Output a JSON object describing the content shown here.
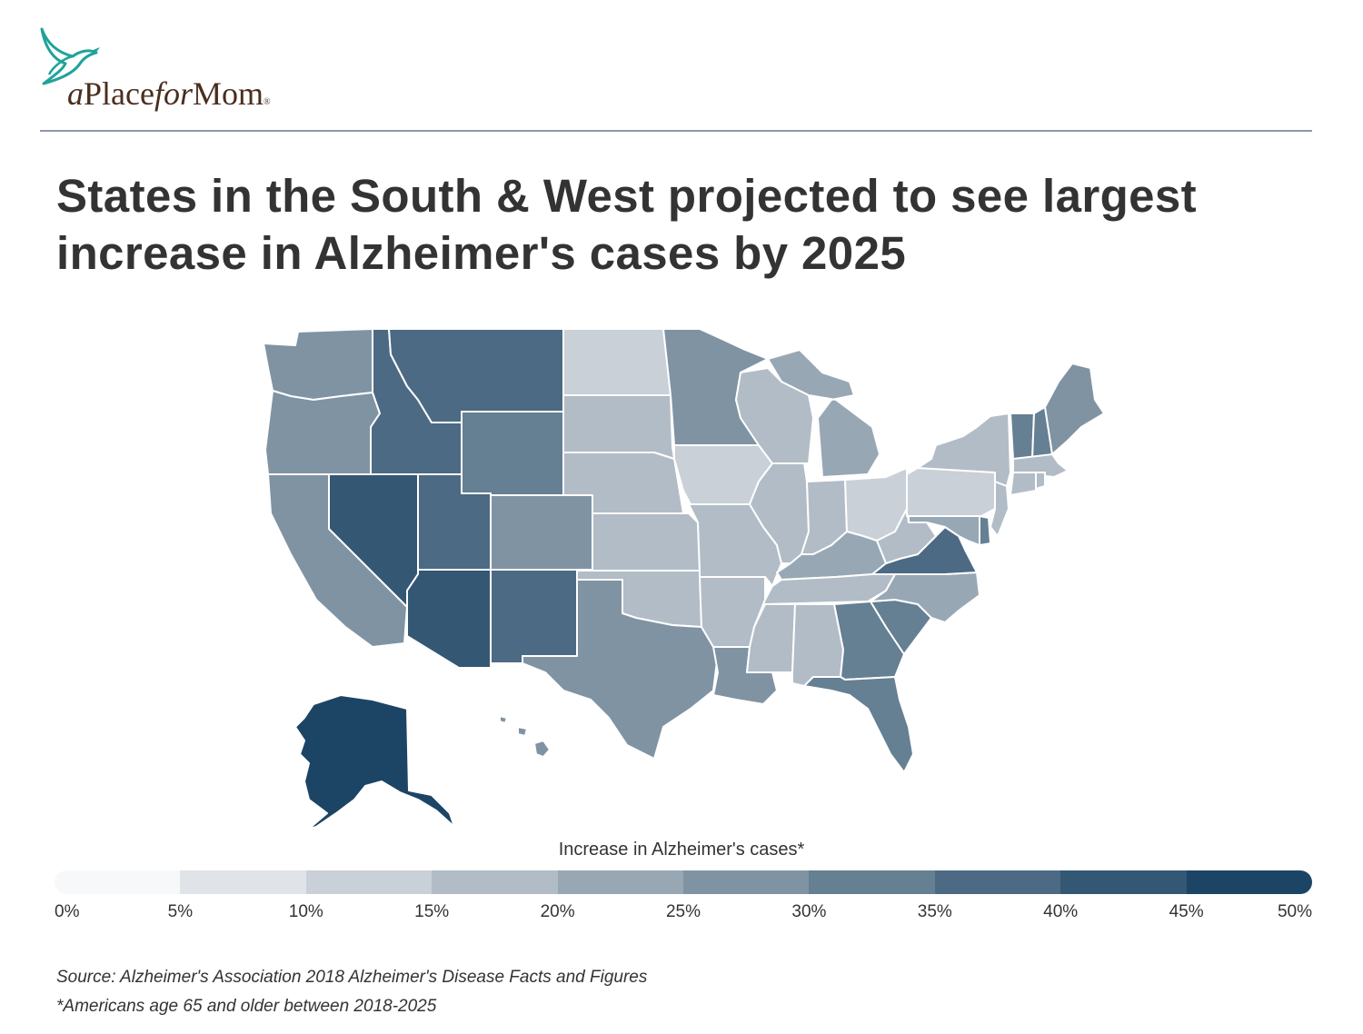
{
  "brand": {
    "logo_a": "a",
    "logo_place": "Place",
    "logo_for": "for",
    "logo_mom": "Mom",
    "logo_reg": "®",
    "bird_color": "#1fa39a",
    "text_color": "#4a2e1e"
  },
  "title_line1": "States in the South & West projected to see largest",
  "title_line2": "increase in Alzheimer's cases by 2025",
  "legend": {
    "title": "Increase in Alzheimer's cases*",
    "ticks": [
      "0%",
      "5%",
      "10%",
      "15%",
      "20%",
      "25%",
      "30%",
      "35%",
      "40%",
      "45%",
      "50%"
    ],
    "colors": [
      "#f7f8f9",
      "#e0e4e8",
      "#c9d0d7",
      "#b1bcc6",
      "#98a7b4",
      "#8093a3",
      "#657f93",
      "#4c6a83",
      "#345774",
      "#1c4465"
    ]
  },
  "source": "Source:  Alzheimer's Association  2018 Alzheimer's Disease Facts and Figures",
  "footnote": "*Americans age 65 and older between 2018-2025",
  "map_data": {
    "measure": "Increase in Alzheimer's cases (%)",
    "states": [
      {
        "id": "WA",
        "value": 27
      },
      {
        "id": "OR",
        "value": 27
      },
      {
        "id": "CA",
        "value": 27
      },
      {
        "id": "NV",
        "value": 42
      },
      {
        "id": "ID",
        "value": 37
      },
      {
        "id": "MT",
        "value": 37
      },
      {
        "id": "WY",
        "value": 32
      },
      {
        "id": "UT",
        "value": 37
      },
      {
        "id": "CO",
        "value": 27
      },
      {
        "id": "AZ",
        "value": 42
      },
      {
        "id": "NM",
        "value": 37
      },
      {
        "id": "ND",
        "value": 12
      },
      {
        "id": "SD",
        "value": 17
      },
      {
        "id": "NE",
        "value": 17
      },
      {
        "id": "KS",
        "value": 17
      },
      {
        "id": "OK",
        "value": 17
      },
      {
        "id": "TX",
        "value": 27
      },
      {
        "id": "MN",
        "value": 27
      },
      {
        "id": "IA",
        "value": 12
      },
      {
        "id": "MO",
        "value": 17
      },
      {
        "id": "AR",
        "value": 17
      },
      {
        "id": "LA",
        "value": 27
      },
      {
        "id": "WI",
        "value": 17
      },
      {
        "id": "IL",
        "value": 17
      },
      {
        "id": "MI",
        "value": 22
      },
      {
        "id": "IN",
        "value": 17
      },
      {
        "id": "OH",
        "value": 12
      },
      {
        "id": "KY",
        "value": 22
      },
      {
        "id": "TN",
        "value": 17
      },
      {
        "id": "MS",
        "value": 17
      },
      {
        "id": "AL",
        "value": 17
      },
      {
        "id": "GA",
        "value": 32
      },
      {
        "id": "FL",
        "value": 32
      },
      {
        "id": "SC",
        "value": 32
      },
      {
        "id": "NC",
        "value": 22
      },
      {
        "id": "VA",
        "value": 37
      },
      {
        "id": "WV",
        "value": 17
      },
      {
        "id": "PA",
        "value": 12
      },
      {
        "id": "NY",
        "value": 17
      },
      {
        "id": "VT",
        "value": 32
      },
      {
        "id": "NH",
        "value": 32
      },
      {
        "id": "ME",
        "value": 27
      },
      {
        "id": "MA",
        "value": 17
      },
      {
        "id": "CT",
        "value": 17
      },
      {
        "id": "RI",
        "value": 17
      },
      {
        "id": "NJ",
        "value": 17
      },
      {
        "id": "DE",
        "value": 32
      },
      {
        "id": "MD",
        "value": 22
      },
      {
        "id": "AK",
        "value": 47
      },
      {
        "id": "HI",
        "value": 27
      }
    ]
  }
}
